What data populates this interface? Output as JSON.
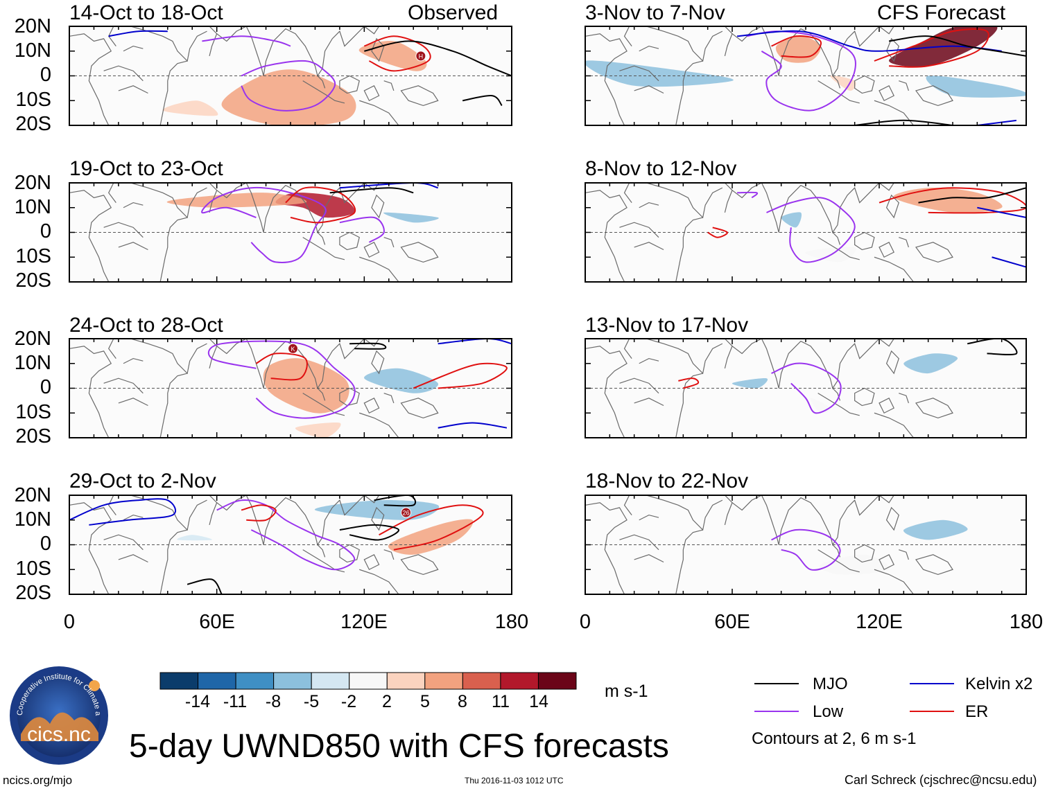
{
  "figure": {
    "title": "5-day UWND850 with CFS forecasts",
    "observed_label": "Observed",
    "forecast_label": "CFS Forecast",
    "y_ticks": [
      "20N",
      "10N",
      "0",
      "10S",
      "20S"
    ],
    "x_ticks": [
      "0",
      "60E",
      "120E",
      "180"
    ]
  },
  "panels": [
    {
      "title": "14-Oct to 18-Oct",
      "column": "observed"
    },
    {
      "title": "19-Oct to 23-Oct",
      "column": "observed"
    },
    {
      "title": "24-Oct to 28-Oct",
      "column": "observed"
    },
    {
      "title": "29-Oct to 2-Nov",
      "column": "observed"
    },
    {
      "title": "3-Nov to 7-Nov",
      "column": "forecast"
    },
    {
      "title": "8-Nov to 12-Nov",
      "column": "forecast"
    },
    {
      "title": "13-Nov to 17-Nov",
      "column": "forecast"
    },
    {
      "title": "18-Nov to 22-Nov",
      "column": "forecast"
    }
  ],
  "colorbar": {
    "labels": [
      "-14",
      "-11",
      "-8",
      "-5",
      "-2",
      "2",
      "5",
      "8",
      "11",
      "14"
    ],
    "colors": [
      "#0b3c6b",
      "#1f66a8",
      "#3f8fc4",
      "#8cc0dd",
      "#d4e7f2",
      "#f7f7f7",
      "#fbd3bf",
      "#f2a27f",
      "#d9604e",
      "#b2182b",
      "#6b0518"
    ],
    "units": "m s-1"
  },
  "legend": {
    "items": [
      {
        "label": "MJO",
        "color": "#000000"
      },
      {
        "label": "Kelvin x2",
        "color": "#0000cc"
      },
      {
        "label": "Low",
        "color": "#9933ee"
      },
      {
        "label": "ER",
        "color": "#e01010"
      }
    ],
    "note": "Contours at 2, 6 m s-1"
  },
  "logo": {
    "text": "cics.nc",
    "ring_text": "Cooperative Institute for Climate and Satellites"
  },
  "footer": {
    "left": "ncics.org/mjo",
    "center": "Thu 2016-11-03 1012 UTC",
    "right": "Carl Schreck (cjschrec@ncsu.edu)"
  },
  "storm_markers": [
    {
      "panel": 0,
      "label": "H"
    },
    {
      "panel": 2,
      "label": "K"
    },
    {
      "panel": 3,
      "label": "26"
    }
  ]
}
